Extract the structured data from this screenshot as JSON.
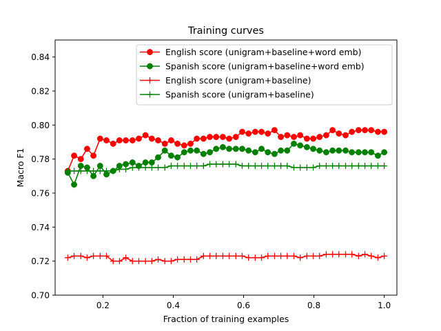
{
  "chart_data": {
    "type": "line",
    "title": "Training curves",
    "xlabel": "Fraction of training examples",
    "ylabel": "Macro F1",
    "xlim": [
      0.064,
      1.036
    ],
    "ylim": [
      0.7,
      0.85
    ],
    "xticks": [
      0.2,
      0.4,
      0.6,
      0.8,
      1.0
    ],
    "xtick_labels": [
      "0.2",
      "0.4",
      "0.6",
      "0.8",
      "1.0"
    ],
    "yticks": [
      0.7,
      0.72,
      0.74,
      0.76,
      0.78,
      0.8,
      0.82,
      0.84
    ],
    "ytick_labels": [
      "0.70",
      "0.72",
      "0.74",
      "0.76",
      "0.78",
      "0.80",
      "0.82",
      "0.84"
    ],
    "grid": false,
    "legend_position": "top-right",
    "x": [
      0.1,
      0.118,
      0.137,
      0.155,
      0.173,
      0.192,
      0.21,
      0.229,
      0.247,
      0.265,
      0.284,
      0.302,
      0.321,
      0.339,
      0.357,
      0.376,
      0.394,
      0.412,
      0.431,
      0.449,
      0.467,
      0.486,
      0.504,
      0.522,
      0.541,
      0.559,
      0.578,
      0.596,
      0.614,
      0.633,
      0.651,
      0.669,
      0.688,
      0.706,
      0.724,
      0.743,
      0.761,
      0.78,
      0.798,
      0.816,
      0.835,
      0.853,
      0.871,
      0.89,
      0.908,
      0.927,
      0.945,
      0.963,
      0.982,
      1.0
    ],
    "series": [
      {
        "name": "English score (unigram+baseline+word emb)",
        "color": "#ff0000",
        "marker": "circle",
        "values": [
          0.773,
          0.782,
          0.78,
          0.786,
          0.782,
          0.792,
          0.791,
          0.789,
          0.791,
          0.791,
          0.791,
          0.792,
          0.794,
          0.792,
          0.791,
          0.789,
          0.791,
          0.789,
          0.788,
          0.789,
          0.792,
          0.792,
          0.793,
          0.793,
          0.793,
          0.792,
          0.793,
          0.796,
          0.795,
          0.796,
          0.796,
          0.795,
          0.797,
          0.793,
          0.794,
          0.793,
          0.794,
          0.792,
          0.792,
          0.793,
          0.794,
          0.797,
          0.795,
          0.794,
          0.796,
          0.797,
          0.797,
          0.797,
          0.796,
          0.796
        ]
      },
      {
        "name": "Spanish score (unigram+baseline+word emb)",
        "color": "#008000",
        "marker": "circle",
        "values": [
          0.772,
          0.765,
          0.776,
          0.775,
          0.77,
          0.776,
          0.771,
          0.773,
          0.776,
          0.777,
          0.778,
          0.776,
          0.778,
          0.778,
          0.781,
          0.785,
          0.782,
          0.781,
          0.784,
          0.785,
          0.785,
          0.783,
          0.784,
          0.786,
          0.787,
          0.786,
          0.786,
          0.786,
          0.785,
          0.784,
          0.786,
          0.784,
          0.783,
          0.785,
          0.785,
          0.789,
          0.788,
          0.787,
          0.786,
          0.785,
          0.784,
          0.785,
          0.785,
          0.785,
          0.784,
          0.784,
          0.784,
          0.784,
          0.782,
          0.784
        ]
      },
      {
        "name": "English score (unigram+baseline)",
        "color": "#ff0000",
        "marker": "plus",
        "values": [
          0.722,
          0.723,
          0.723,
          0.722,
          0.723,
          0.723,
          0.723,
          0.72,
          0.72,
          0.722,
          0.72,
          0.72,
          0.72,
          0.72,
          0.721,
          0.72,
          0.72,
          0.721,
          0.721,
          0.721,
          0.721,
          0.723,
          0.723,
          0.723,
          0.723,
          0.723,
          0.723,
          0.723,
          0.722,
          0.722,
          0.722,
          0.723,
          0.723,
          0.723,
          0.723,
          0.723,
          0.722,
          0.723,
          0.723,
          0.723,
          0.724,
          0.724,
          0.724,
          0.724,
          0.724,
          0.723,
          0.724,
          0.723,
          0.722,
          0.723
        ]
      },
      {
        "name": "Spanish score (unigram+baseline)",
        "color": "#008000",
        "marker": "plus",
        "values": [
          0.773,
          0.773,
          0.773,
          0.773,
          0.773,
          0.773,
          0.773,
          0.773,
          0.774,
          0.774,
          0.775,
          0.775,
          0.775,
          0.775,
          0.775,
          0.775,
          0.776,
          0.776,
          0.776,
          0.776,
          0.776,
          0.776,
          0.777,
          0.777,
          0.777,
          0.777,
          0.777,
          0.776,
          0.776,
          0.776,
          0.776,
          0.776,
          0.776,
          0.776,
          0.776,
          0.775,
          0.775,
          0.775,
          0.775,
          0.776,
          0.776,
          0.776,
          0.776,
          0.776,
          0.776,
          0.776,
          0.776,
          0.776,
          0.776,
          0.776
        ]
      }
    ]
  }
}
